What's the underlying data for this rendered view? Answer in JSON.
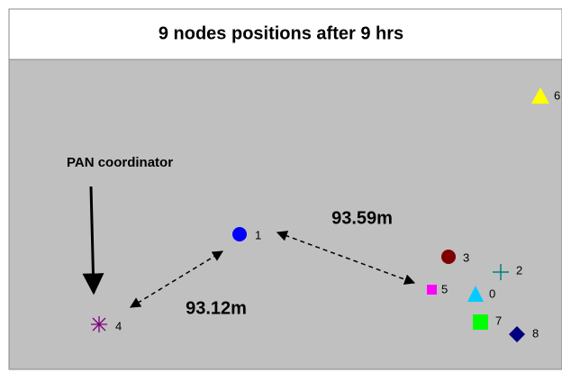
{
  "title": "9 nodes positions after 9 hrs",
  "annotations": {
    "coordinator": "PAN coordinator",
    "distance_1_5": "93.59m",
    "distance_4_1": "93.12m"
  },
  "nodes": [
    {
      "label": "0"
    },
    {
      "label": "1"
    },
    {
      "label": "2"
    },
    {
      "label": "3"
    },
    {
      "label": "4"
    },
    {
      "label": "5"
    },
    {
      "label": "6"
    },
    {
      "label": "7"
    },
    {
      "label": "8"
    }
  ]
}
